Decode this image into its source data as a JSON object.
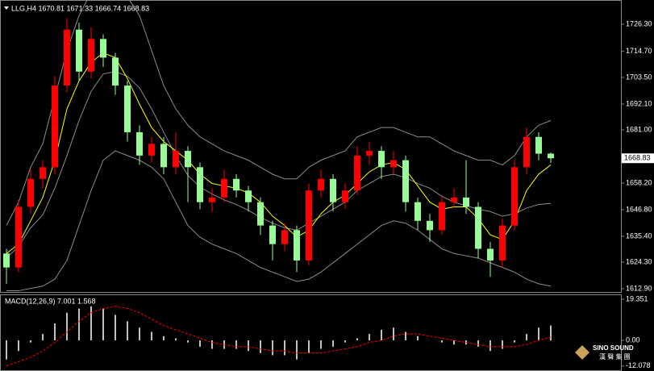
{
  "chart_data": [
    {
      "type": "candlestick",
      "title": "LLG,H4 1670.81 1671.33 1666.74 1668.83",
      "open": [
        1628,
        1622,
        1648,
        1660,
        1665,
        1700,
        1724,
        1706,
        1720,
        1712,
        1700,
        1680,
        1670,
        1675,
        1665,
        1672,
        1665,
        1650,
        1652,
        1660,
        1655,
        1650,
        1640,
        1632,
        1638,
        1625,
        1655,
        1660,
        1650,
        1655,
        1670,
        1672,
        1665,
        1668,
        1650,
        1642,
        1638,
        1650,
        1652,
        1648,
        1630,
        1625,
        1640,
        1665,
        1678,
        1670.81
      ],
      "high": [
        1630,
        1651,
        1664,
        1668,
        1704,
        1729,
        1727,
        1725,
        1722,
        1714,
        1702,
        1683,
        1678,
        1678,
        1680,
        1674,
        1667,
        1656,
        1664,
        1662,
        1657,
        1652,
        1642,
        1641,
        1640,
        1658,
        1664,
        1662,
        1658,
        1674,
        1676,
        1674,
        1672,
        1670,
        1652,
        1645,
        1653,
        1656,
        1668,
        1650,
        1633,
        1643,
        1668,
        1682,
        1680,
        1671.33
      ],
      "low": [
        1615,
        1620,
        1645,
        1656,
        1662,
        1697,
        1702,
        1703,
        1708,
        1696,
        1676,
        1666,
        1667,
        1662,
        1662,
        1650,
        1647,
        1646,
        1650,
        1652,
        1646,
        1636,
        1625,
        1629,
        1620,
        1623,
        1652,
        1646,
        1647,
        1653,
        1666,
        1660,
        1662,
        1646,
        1638,
        1633,
        1636,
        1648,
        1645,
        1626,
        1618,
        1622,
        1638,
        1662,
        1668,
        1666.74
      ],
      "close": [
        1622,
        1648,
        1660,
        1665,
        1700,
        1724,
        1706,
        1720,
        1712,
        1700,
        1680,
        1670,
        1675,
        1665,
        1672,
        1665,
        1650,
        1652,
        1660,
        1655,
        1650,
        1640,
        1632,
        1638,
        1625,
        1655,
        1660,
        1650,
        1655,
        1670,
        1672,
        1665,
        1668,
        1650,
        1642,
        1638,
        1650,
        1652,
        1648,
        1630,
        1625,
        1640,
        1665,
        1678,
        1670.81,
        1668.83
      ],
      "up_color": "#ff0000",
      "down_color": "#98fb98",
      "lines": [
        {
          "color": "#8c8c8c",
          "values": [
            1640,
            1650,
            1665,
            1675,
            1695,
            1715,
            1730,
            1740,
            1742,
            1740,
            1738,
            1730,
            1715,
            1700,
            1690,
            1683,
            1678,
            1675,
            1672,
            1670,
            1668,
            1665,
            1662,
            1660,
            1660,
            1665,
            1668,
            1670,
            1672,
            1678,
            1680,
            1682,
            1682,
            1680,
            1678,
            1678,
            1675,
            1672,
            1670,
            1668,
            1668,
            1666,
            1670,
            1678,
            1683,
            1685
          ]
        },
        {
          "color": "#8c8c8c",
          "values": [
            1626,
            1631,
            1639,
            1644.5,
            1656,
            1670,
            1685,
            1697.5,
            1705,
            1706,
            1704,
            1699,
            1690,
            1680,
            1670,
            1661.5,
            1656.5,
            1653.5,
            1651,
            1649,
            1646.5,
            1643.5,
            1641,
            1639,
            1638,
            1641,
            1644,
            1647,
            1650,
            1655,
            1658,
            1661,
            1662,
            1660.5,
            1658,
            1656,
            1652.5,
            1650,
            1648.5,
            1647,
            1646,
            1644,
            1645,
            1647.5,
            1649,
            1649.5
          ]
        },
        {
          "color": "#8c8c8c",
          "values": [
            1612,
            1612,
            1613,
            1614,
            1617,
            1625,
            1640,
            1655,
            1668,
            1672,
            1670,
            1668,
            1665,
            1660,
            1650,
            1640,
            1635,
            1632,
            1630,
            1628,
            1625,
            1622,
            1620,
            1618,
            1616,
            1617,
            1620,
            1624,
            1628,
            1632,
            1636,
            1640,
            1642,
            1641,
            1638,
            1634,
            1630,
            1628,
            1627,
            1626,
            1624,
            1622,
            1620,
            1617,
            1615,
            1614
          ]
        },
        {
          "color": "#ffff00",
          "values": [
            1628,
            1632,
            1642,
            1652,
            1668,
            1690,
            1702,
            1710,
            1714,
            1712,
            1703,
            1692,
            1682,
            1676,
            1672,
            1668,
            1662,
            1658,
            1657,
            1656,
            1654,
            1650,
            1644,
            1640,
            1635,
            1638,
            1645,
            1650,
            1653,
            1658,
            1663,
            1666,
            1667,
            1664,
            1657,
            1650,
            1647,
            1648,
            1648,
            1643,
            1636,
            1634,
            1642,
            1655,
            1662,
            1666
          ]
        }
      ],
      "last_price": 1668.83,
      "ylim": [
        1611.5,
        1736.7
      ],
      "yticks": [
        {
          "value": 1612.9,
          "label": "1612.90"
        },
        {
          "value": 1624.3,
          "label": "1624.30"
        },
        {
          "value": 1635.4,
          "label": "1635.40"
        },
        {
          "value": 1646.8,
          "label": "1646.80"
        },
        {
          "value": 1658.2,
          "label": "1658.20"
        },
        {
          "value": 1681,
          "label": "1681.00"
        },
        {
          "value": 1692.1,
          "label": "1692.10"
        },
        {
          "value": 1703.5,
          "label": "1703.50"
        },
        {
          "value": 1714.7,
          "label": "1714.70"
        },
        {
          "value": 1726.3,
          "label": "1726.30"
        }
      ]
    },
    {
      "type": "macd",
      "title": "MACD(12,26,9) 7.001 1.568",
      "histogram": [
        -9,
        -5,
        -1,
        3,
        8,
        13,
        15,
        16,
        15,
        12,
        9,
        6,
        4,
        2,
        1,
        -1,
        -3,
        -4,
        -4,
        -4,
        -5,
        -6,
        -7,
        -7,
        -9,
        -6,
        -4,
        -3,
        -1,
        1,
        3,
        5,
        6,
        4,
        2,
        0,
        -1,
        -2,
        -2,
        -3,
        -5,
        -4,
        -1,
        3,
        6,
        7.001
      ],
      "signal": [
        -12,
        -10,
        -8,
        -5,
        -1,
        4,
        9,
        13,
        15,
        16,
        15,
        13,
        10,
        7,
        5,
        3,
        1,
        -1,
        -2,
        -3,
        -3,
        -4,
        -5,
        -5,
        -6,
        -6,
        -6,
        -5,
        -4,
        -3,
        -1,
        0,
        2,
        3,
        3,
        2,
        1,
        0,
        -1,
        -2,
        -3,
        -3,
        -3,
        -2,
        0,
        1.568
      ],
      "histogram_color": "#c0c0c0",
      "signal_color": "#ff0000",
      "ylim": [
        -14.42,
        21.25
      ],
      "yticks": [
        -12.078,
        {
          "value": 0,
          "label": "0.00"
        },
        19.351
      ]
    }
  ],
  "logo": {
    "text": "SINO SOUND",
    "subtext": "漢 聲 集 團"
  }
}
